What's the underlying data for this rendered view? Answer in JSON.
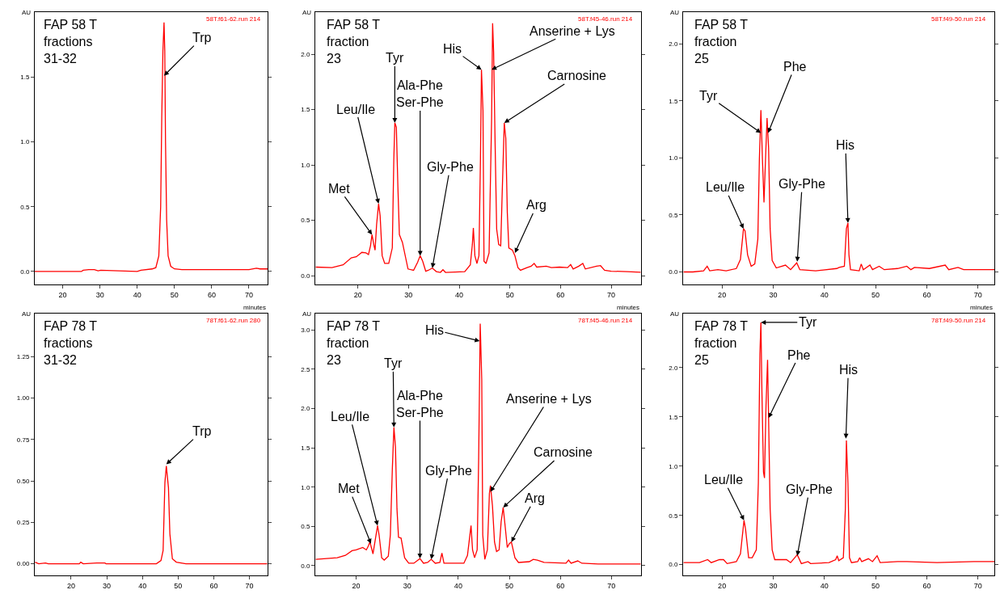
{
  "chart_data": [
    {
      "type": "line",
      "title": "FAP 58 T\nfractions\n31-32",
      "xlabel": "minutes",
      "ylabel": "AU",
      "grid": false,
      "xlim": [
        12.5,
        75
      ],
      "ylim": [
        -0.1,
        2.0
      ],
      "xticks": [
        20,
        30,
        40,
        50,
        60,
        70
      ],
      "yticks": [
        {
          "value": 0,
          "label": "0.0"
        },
        {
          "value": 0.5,
          "label": "0.5"
        },
        {
          "value": 1,
          "label": "1.0"
        },
        {
          "value": 1.5,
          "label": "1.5"
        }
      ],
      "x": [
        12.5,
        25,
        25.5,
        27,
        28.5,
        29.5,
        30.2,
        40,
        41,
        44,
        45,
        45.8,
        46.3,
        46.6,
        46.9,
        47.2,
        47.4,
        47.6,
        47.9,
        48.3,
        49,
        50,
        52,
        70,
        72,
        73,
        75
      ],
      "series": [
        {
          "color": "#ff0000",
          "values": [
            0,
            0,
            0.01,
            0.015,
            0.015,
            0.005,
            0.01,
            0,
            0.01,
            0.02,
            0.03,
            0.12,
            0.5,
            1.2,
            1.7,
            1.92,
            1.7,
            1.0,
            0.4,
            0.12,
            0.04,
            0.02,
            0.015,
            0.015,
            0.025,
            0.02,
            0.02
          ]
        }
      ],
      "annotations": [
        "58T.f61-62.run 214",
        {
          "text": "Trp",
          "x": 47.2,
          "y": 1.51
        }
      ]
    },
    {
      "type": "line",
      "title": "FAP 58 T\nfraction\n23",
      "xlabel": "minutes",
      "ylabel": "AU",
      "grid": false,
      "xlim": [
        11.6,
        75.9
      ],
      "ylim": [
        -0.08,
        2.38
      ],
      "xticks": [
        20,
        30,
        40,
        50,
        60,
        70
      ],
      "yticks": [
        {
          "value": 0,
          "label": "0.0"
        },
        {
          "value": 0.5,
          "label": "0.5"
        },
        {
          "value": 1,
          "label": "1.0"
        },
        {
          "value": 1.5,
          "label": "1.5"
        },
        {
          "value": 2,
          "label": "2.0"
        }
      ],
      "x": [
        11.7,
        14.9,
        17.1,
        18.7,
        19.7,
        20.8,
        21.6,
        22.1,
        22.5,
        22.8,
        23.2,
        23.4,
        23.7,
        24.1,
        24.4,
        24.8,
        25.3,
        26.1,
        26.8,
        27.1,
        27.3,
        27.6,
        27.9,
        28.2,
        28.8,
        29.9,
        31.0,
        31.8,
        32.3,
        32.8,
        33.4,
        33.9,
        34.7,
        35.5,
        36.3,
        36.8,
        37.3,
        41.1,
        42.2,
        42.6,
        42.8,
        43.1,
        43.5,
        43.9,
        44.2,
        44.4,
        44.7,
        44.9,
        45.3,
        45.9,
        46.4,
        46.6,
        46.8,
        47.1,
        47.4,
        47.8,
        48.2,
        48.5,
        48.9,
        49.2,
        49.5,
        49.8,
        50.5,
        51.0,
        51.6,
        52.1,
        53.4,
        54.2,
        54.8,
        55.3,
        57.2,
        58.2,
        59.8,
        61.4,
        62.0,
        62.5,
        63.6,
        64.4,
        64.9,
        67.1,
        67.9,
        68.7,
        70.0,
        73.2,
        75.8
      ],
      "series": [
        {
          "color": "#ff0000",
          "values": [
            0.077,
            0.072,
            0.097,
            0.16,
            0.17,
            0.21,
            0.205,
            0.19,
            0.27,
            0.37,
            0.27,
            0.23,
            0.46,
            0.65,
            0.54,
            0.18,
            0.11,
            0.11,
            0.25,
            1.05,
            1.38,
            1.34,
            0.81,
            0.37,
            0.3,
            0.06,
            0.048,
            0.12,
            0.18,
            0.13,
            0.04,
            0.048,
            0.068,
            0.036,
            0.029,
            0.053,
            0.029,
            0.036,
            0.097,
            0.28,
            0.43,
            0.18,
            0.11,
            0.18,
            1.05,
            1.86,
            1.49,
            0.13,
            0.11,
            0.205,
            1.41,
            2.28,
            2.02,
            1.17,
            0.42,
            0.28,
            0.27,
            0.76,
            1.38,
            1.24,
            0.57,
            0.25,
            0.23,
            0.18,
            0.072,
            0.048,
            0.072,
            0.085,
            0.11,
            0.077,
            0.085,
            0.072,
            0.077,
            0.072,
            0.1,
            0.06,
            0.085,
            0.11,
            0.06,
            0.085,
            0.09,
            0.048,
            0.04,
            0.036,
            0.03
          ]
        }
      ],
      "annotations": [
        "58T.f45-46.run 214",
        {
          "text": "Met",
          "x": 22.8,
          "y": 0.37
        },
        {
          "text": "Leu/Ile",
          "x": 24.1,
          "y": 0.65
        },
        {
          "text": "Tyr",
          "x": 27.3,
          "y": 1.38
        },
        {
          "text": "Ala-Phe\nSer-Phe",
          "x": 32.3,
          "y": 0.18
        },
        {
          "text": "Gly-Phe",
          "x": 34.7,
          "y": 0.068
        },
        {
          "text": "His",
          "x": 44.4,
          "y": 1.86
        },
        {
          "text": "Anserine + Lys",
          "x": 46.4,
          "y": 1.86
        },
        {
          "text": "Carnosine",
          "x": 48.9,
          "y": 1.38
        },
        {
          "text": "Arg",
          "x": 51.0,
          "y": 0.205
        }
      ]
    },
    {
      "type": "line",
      "title": "FAP 58 T\nfraction\n25",
      "xlabel": "minutes",
      "ylabel": "AU",
      "grid": false,
      "xlim": [
        12.4,
        73.2
      ],
      "ylim": [
        -0.11,
        2.28
      ],
      "xticks": [
        20,
        30,
        40,
        50,
        60,
        70
      ],
      "yticks": [
        {
          "value": 0,
          "label": "0.0"
        },
        {
          "value": 0.5,
          "label": "0.5"
        },
        {
          "value": 1,
          "label": "1.0"
        },
        {
          "value": 1.5,
          "label": "1.5"
        },
        {
          "value": 2,
          "label": "2.0"
        }
      ],
      "x": [
        12.5,
        14.3,
        16.4,
        17.1,
        17.6,
        19.2,
        20.8,
        22.8,
        23.6,
        24.2,
        24.5,
        25.0,
        25.7,
        26.4,
        27.0,
        27.3,
        27.6,
        27.9,
        28.2,
        28.5,
        28.8,
        29.1,
        29.4,
        29.8,
        30.6,
        32.4,
        33.4,
        34.6,
        35.2,
        38.3,
        42.4,
        42.9,
        43.9,
        44.3,
        44.6,
        44.8,
        45.1,
        46.8,
        47.2,
        47.6,
        48.9,
        49.4,
        50.7,
        51.7,
        54.3,
        56.1,
        56.9,
        57.6,
        60.5,
        63.6,
        64.3,
        66.1,
        67.2,
        69.7,
        73.2
      ],
      "series": [
        {
          "color": "#ff0000",
          "values": [
            0,
            0,
            0.01,
            0.05,
            0.01,
            0.02,
            0.01,
            0.03,
            0.11,
            0.38,
            0.36,
            0.15,
            0.05,
            0.07,
            0.29,
            0.99,
            1.42,
            0.99,
            0.61,
            0.99,
            1.35,
            1.09,
            0.38,
            0.1,
            0.035,
            0.06,
            0.02,
            0.08,
            0.02,
            0.01,
            0.03,
            0.04,
            0.05,
            0.38,
            0.43,
            0.15,
            0.02,
            0.01,
            0.07,
            0.02,
            0.06,
            0.02,
            0.05,
            0.02,
            0.03,
            0.05,
            0.02,
            0.04,
            0.03,
            0.06,
            0.02,
            0.04,
            0.02,
            0.02,
            0.02
          ]
        }
      ],
      "annotations": [
        "58T.f49-50.run 214",
        {
          "text": "Leu/Ile",
          "x": 24.2,
          "y": 0.38
        },
        {
          "text": "Tyr",
          "x": 27.6,
          "y": 1.22
        },
        {
          "text": "Phe",
          "x": 29.0,
          "y": 1.22
        },
        {
          "text": "Gly-Phe",
          "x": 34.7,
          "y": 0.09
        },
        {
          "text": "His",
          "x": 44.6,
          "y": 0.43
        }
      ]
    },
    {
      "type": "line",
      "title": "FAP 78 T\nfractions\n31-32",
      "ylabel": "AU",
      "grid": false,
      "xlim": [
        9.8,
        75.1
      ],
      "ylim": [
        -0.07,
        1.51
      ],
      "xticks": [
        20,
        30,
        40,
        50,
        60,
        70
      ],
      "yticks": [
        {
          "value": 0,
          "label": "0.00"
        },
        {
          "value": 0.25,
          "label": "0.25"
        },
        {
          "value": 0.5,
          "label": "0.50"
        },
        {
          "value": 0.75,
          "label": "0.75"
        },
        {
          "value": 1,
          "label": "1.00"
        },
        {
          "value": 1.25,
          "label": "1.25"
        }
      ],
      "x": [
        9.9,
        10.9,
        12.8,
        13.6,
        22.3,
        22.7,
        23.4,
        27.2,
        29.5,
        29.8,
        43.9,
        45.2,
        45.8,
        46.3,
        46.7,
        47.3,
        47.7,
        48.4,
        49.5,
        52.2,
        75.0
      ],
      "series": [
        {
          "color": "#ff0000",
          "values": [
            0.01,
            0,
            0.005,
            0,
            0,
            0.01,
            0,
            0.005,
            0.005,
            0,
            0,
            0.02,
            0.08,
            0.49,
            0.59,
            0.46,
            0.18,
            0.03,
            0.01,
            0,
            0
          ]
        }
      ],
      "annotations": [
        "78T.f61-62.run 280",
        {
          "text": "Trp",
          "x": 46.7,
          "y": 0.6
        }
      ]
    },
    {
      "type": "line",
      "title": "FAP 78 T\nfraction\n23",
      "ylabel": "AU",
      "grid": false,
      "xlim": [
        12.0,
        75.8
      ],
      "ylim": [
        -0.125,
        3.21
      ],
      "xticks": [
        20,
        30,
        40,
        50,
        60,
        70
      ],
      "yticks": [
        {
          "value": 0,
          "label": "0.0"
        },
        {
          "value": 0.5,
          "label": "0.5"
        },
        {
          "value": 1,
          "label": "1.0"
        },
        {
          "value": 1.5,
          "label": "1.5"
        },
        {
          "value": 2,
          "label": "2.0"
        },
        {
          "value": 2.5,
          "label": "2.5"
        },
        {
          "value": 3,
          "label": "3.0"
        }
      ],
      "x": [
        12.1,
        16.3,
        17.9,
        19.2,
        20.0,
        21.3,
        22.0,
        22.4,
        22.7,
        23.3,
        23.8,
        24.2,
        24.5,
        25.0,
        25.5,
        26.3,
        26.7,
        27.1,
        27.4,
        27.7,
        28.0,
        28.3,
        28.8,
        29.5,
        30.3,
        31.3,
        32.5,
        33.2,
        34.0,
        34.7,
        35.5,
        36.4,
        36.8,
        37.2,
        41.1,
        41.8,
        42.5,
        42.8,
        43.2,
        43.7,
        44.0,
        44.3,
        44.6,
        44.8,
        45.2,
        45.7,
        46.1,
        46.3,
        46.7,
        47.1,
        47.5,
        48.0,
        48.4,
        48.8,
        49.2,
        49.6,
        50.0,
        50.4,
        51.1,
        51.8,
        53.9,
        54.7,
        55.5,
        56.8,
        61.1,
        61.6,
        62.1,
        63.4,
        64.2,
        67.4,
        75.7
      ],
      "series": [
        {
          "color": "#ff0000",
          "values": [
            0.08,
            0.1,
            0.13,
            0.19,
            0.2,
            0.23,
            0.2,
            0.25,
            0.3,
            0.15,
            0.35,
            0.51,
            0.39,
            0.1,
            0.07,
            0.12,
            0.39,
            1.25,
            1.76,
            1.51,
            0.72,
            0.36,
            0.35,
            0.1,
            0.03,
            0.03,
            0.09,
            0.03,
            0.04,
            0.08,
            0.03,
            0.04,
            0.16,
            0.03,
            0.03,
            0.13,
            0.51,
            0.2,
            0.1,
            0.2,
            1.38,
            3.08,
            2.37,
            0.39,
            0.08,
            0.2,
            0.92,
            1.02,
            0.76,
            0.3,
            0.18,
            0.2,
            0.56,
            0.74,
            0.49,
            0.23,
            0.28,
            0.3,
            0.1,
            0.04,
            0.05,
            0.08,
            0.07,
            0.04,
            0.03,
            0.07,
            0.03,
            0.06,
            0.03,
            0.02,
            0.02
          ]
        }
      ],
      "annotations": [
        "78T.f45-46.run 214",
        {
          "text": "Met",
          "x": 22.9,
          "y": 0.28
        },
        {
          "text": "Leu/Ile",
          "x": 24.2,
          "y": 0.51
        },
        {
          "text": "Tyr",
          "x": 27.4,
          "y": 1.76
        },
        {
          "text": "Ala-Phe\nSer-Phe",
          "x": 32.5,
          "y": 0.09
        },
        {
          "text": "Gly-Phe",
          "x": 34.7,
          "y": 0.08
        },
        {
          "text": "His",
          "x": 44.2,
          "y": 2.86
        },
        {
          "text": "Anserine + Lys",
          "x": 46.3,
          "y": 0.94
        },
        {
          "text": "Carnosine",
          "x": 48.8,
          "y": 0.74
        },
        {
          "text": "Arg",
          "x": 50.4,
          "y": 0.3
        }
      ]
    },
    {
      "type": "line",
      "title": "FAP 78 T\nfraction\n25",
      "ylabel": "AU",
      "grid": false,
      "xlim": [
        12.4,
        73.2
      ],
      "ylim": [
        -0.11,
        2.55
      ],
      "xticks": [
        20,
        30,
        40,
        50,
        60,
        70
      ],
      "yticks": [
        {
          "value": 0,
          "label": "0.0"
        },
        {
          "value": 0.5,
          "label": "0.5"
        },
        {
          "value": 1,
          "label": "1.0"
        },
        {
          "value": 1.5,
          "label": "1.5"
        },
        {
          "value": 2,
          "label": "2.0"
        }
      ],
      "x": [
        12.5,
        15.6,
        17.2,
        17.9,
        19.5,
        20.3,
        21.0,
        22.8,
        23.6,
        24.3,
        24.6,
        25.2,
        25.9,
        26.7,
        27.1,
        27.4,
        27.6,
        27.8,
        28.1,
        28.3,
        28.6,
        28.9,
        29.1,
        29.4,
        29.8,
        30.3,
        32.6,
        33.4,
        34.7,
        35.5,
        36.8,
        37.3,
        40.9,
        42.2,
        42.5,
        42.8,
        43.7,
        44.1,
        44.3,
        44.6,
        44.9,
        45.3,
        46.5,
        46.9,
        47.3,
        48.6,
        49.4,
        50.3,
        50.9,
        54.3,
        56.1,
        62.0,
        69.2,
        73.2
      ],
      "series": [
        {
          "color": "#ff0000",
          "values": [
            0.02,
            0.02,
            0.05,
            0.02,
            0.05,
            0.05,
            0.01,
            0.03,
            0.11,
            0.45,
            0.36,
            0.07,
            0.07,
            0.15,
            0.83,
            2.14,
            2.46,
            1.75,
            0.94,
            0.88,
            1.62,
            2.08,
            1.49,
            0.57,
            0.15,
            0.05,
            0.05,
            0.02,
            0.1,
            0.01,
            0.03,
            0.01,
            0.02,
            0.05,
            0.09,
            0.04,
            0.07,
            0.57,
            1.26,
            0.83,
            0.07,
            0.02,
            0.03,
            0.07,
            0.03,
            0.06,
            0.03,
            0.09,
            0.02,
            0.03,
            0.03,
            0.02,
            0.03,
            0.03
          ]
        }
      ],
      "annotations": [
        "78T.f49-50.run 214",
        {
          "text": "Leu/Ile",
          "x": 24.3,
          "y": 0.45
        },
        {
          "text": "Tyr",
          "x": 27.6,
          "y": 2.46
        },
        {
          "text": "Phe",
          "x": 29.1,
          "y": 1.49
        },
        {
          "text": "Gly-Phe",
          "x": 34.7,
          "y": 0.09
        },
        {
          "text": "His",
          "x": 44.2,
          "y": 1.28
        }
      ]
    }
  ]
}
